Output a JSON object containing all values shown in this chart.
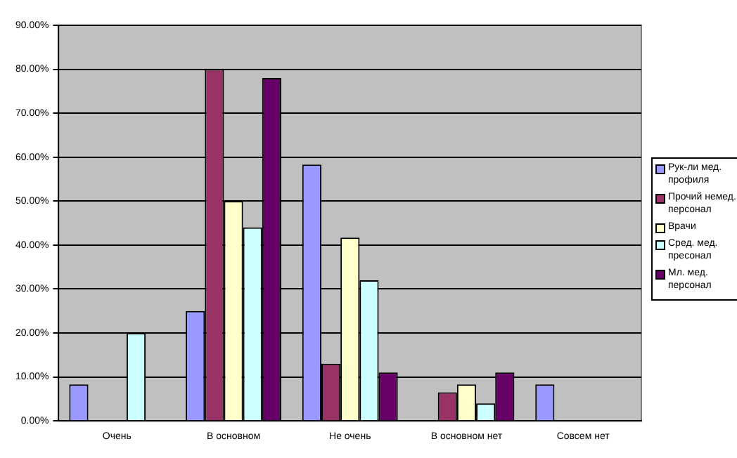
{
  "chart_data": {
    "type": "bar",
    "categories": [
      "Очень",
      "В основном",
      "Не очень",
      "В основном нет",
      "Совсем нет"
    ],
    "series": [
      {
        "name": "Рук-ли мед. профиля",
        "color": "#9999ff",
        "values": [
          8.3,
          25,
          58.3,
          0,
          8.3
        ]
      },
      {
        "name": "Прочий немед. персонал",
        "color": "#993366",
        "values": [
          0,
          80,
          13,
          6.5,
          0
        ]
      },
      {
        "name": "Врачи",
        "color": "#ffffcc",
        "values": [
          0,
          50,
          41.7,
          8.3,
          0
        ]
      },
      {
        "name": "Сред. мед. пресонал",
        "color": "#ccffff",
        "values": [
          20,
          44,
          32,
          4,
          0
        ]
      },
      {
        "name": "Мл. мед. персонал",
        "color": "#660066",
        "values": [
          0,
          78,
          11,
          11,
          0
        ]
      }
    ],
    "ylim": [
      0,
      90
    ],
    "yticks": [
      {
        "value": 0,
        "label": "0.00%"
      },
      {
        "value": 10,
        "label": "10.00%"
      },
      {
        "value": 20,
        "label": "20.00%"
      },
      {
        "value": 30,
        "label": "30.00%"
      },
      {
        "value": 40,
        "label": "40.00%"
      },
      {
        "value": 50,
        "label": "50.00%"
      },
      {
        "value": 60,
        "label": "60.00%"
      },
      {
        "value": 70,
        "label": "70.00%"
      },
      {
        "value": 80,
        "label": "80.00%"
      },
      {
        "value": 90,
        "label": "90.00%"
      }
    ],
    "grid": "y",
    "legend": "right"
  }
}
